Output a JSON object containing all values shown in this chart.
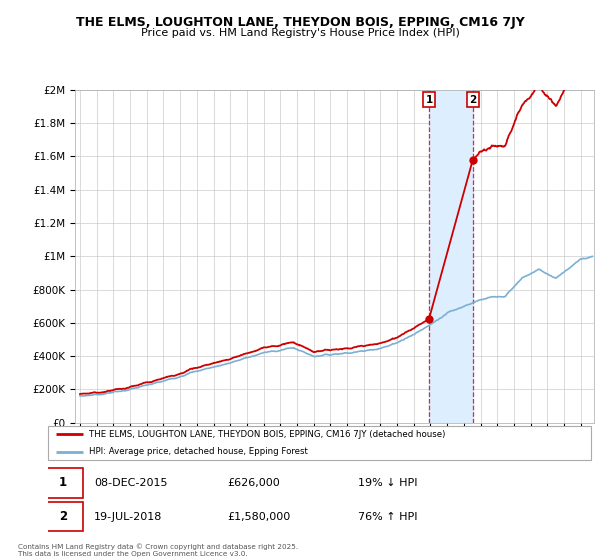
{
  "title": "THE ELMS, LOUGHTON LANE, THEYDON BOIS, EPPING, CM16 7JY",
  "subtitle": "Price paid vs. HM Land Registry's House Price Index (HPI)",
  "ylabel_ticks": [
    "£0",
    "£200K",
    "£400K",
    "£600K",
    "£800K",
    "£1M",
    "£1.2M",
    "£1.4M",
    "£1.6M",
    "£1.8M",
    "£2M"
  ],
  "ytick_values": [
    0,
    200000,
    400000,
    600000,
    800000,
    1000000,
    1200000,
    1400000,
    1600000,
    1800000,
    2000000
  ],
  "hpi_color": "#7bafd4",
  "price_color": "#cc0000",
  "transaction1_year": 2015.92,
  "transaction1_price": 626000,
  "transaction1_date": "08-DEC-2015",
  "transaction1_hpi_text": "19% ↓ HPI",
  "transaction2_year": 2018.54,
  "transaction2_price": 1580000,
  "transaction2_date": "19-JUL-2018",
  "transaction2_hpi_text": "76% ↑ HPI",
  "legend_label1": "THE ELMS, LOUGHTON LANE, THEYDON BOIS, EPPING, CM16 7JY (detached house)",
  "legend_label2": "HPI: Average price, detached house, Epping Forest",
  "footnote": "Contains HM Land Registry data © Crown copyright and database right 2025.\nThis data is licensed under the Open Government Licence v3.0.",
  "xlim": [
    1994.7,
    2025.8
  ],
  "ylim": [
    0,
    2000000
  ],
  "grid_color": "#cccccc",
  "span_color": "#ddeeff"
}
